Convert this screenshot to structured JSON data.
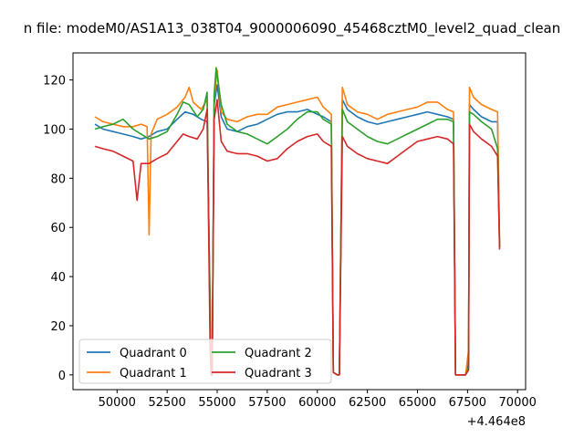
{
  "chart_data": {
    "type": "line",
    "title": "n file: modeM0/AS1A13_038T04_9000006090_45468cztM0_level2_quad_clean",
    "offset_label": "+4.464e8",
    "xlim": [
      47800,
      70400
    ],
    "ylim": [
      -6,
      131
    ],
    "xticks": [
      50000,
      52500,
      55000,
      57500,
      60000,
      62500,
      65000,
      67500,
      70000
    ],
    "xtick_labels": [
      "50000",
      "52500",
      "55000",
      "57500",
      "60000",
      "62500",
      "65000",
      "67500",
      "70000"
    ],
    "yticks": [
      0,
      20,
      40,
      60,
      80,
      100,
      120
    ],
    "ytick_labels": [
      "0",
      "20",
      "40",
      "60",
      "80",
      "100",
      "120"
    ],
    "grid": false,
    "legend": {
      "placement": "lower-left",
      "columns": 2
    },
    "series": [
      {
        "name": "Quadrant 0",
        "color": "#1f77b4",
        "points": [
          [
            48900,
            102
          ],
          [
            49300,
            100
          ],
          [
            49800,
            99
          ],
          [
            50300,
            98
          ],
          [
            50800,
            97
          ],
          [
            51200,
            96
          ],
          [
            51600,
            97
          ],
          [
            52000,
            99
          ],
          [
            52500,
            100
          ],
          [
            53000,
            104
          ],
          [
            53400,
            107
          ],
          [
            53800,
            106
          ],
          [
            54200,
            104
          ],
          [
            54500,
            103
          ],
          [
            54650,
            30
          ],
          [
            54700,
            0
          ],
          [
            54750,
            0
          ],
          [
            54850,
            110
          ],
          [
            55000,
            118
          ],
          [
            55200,
            105
          ],
          [
            55500,
            100
          ],
          [
            56000,
            99
          ],
          [
            56500,
            101
          ],
          [
            57000,
            102
          ],
          [
            57500,
            104
          ],
          [
            58000,
            106
          ],
          [
            58500,
            107
          ],
          [
            59000,
            107
          ],
          [
            59500,
            108
          ],
          [
            60000,
            106
          ],
          [
            60300,
            105
          ],
          [
            60700,
            103
          ],
          [
            60800,
            1
          ],
          [
            61000,
            0
          ],
          [
            61100,
            0
          ],
          [
            61250,
            112
          ],
          [
            61500,
            108
          ],
          [
            62000,
            105
          ],
          [
            62500,
            103
          ],
          [
            63000,
            102
          ],
          [
            63500,
            103
          ],
          [
            64000,
            104
          ],
          [
            64500,
            105
          ],
          [
            65000,
            106
          ],
          [
            65500,
            107
          ],
          [
            66000,
            106
          ],
          [
            66500,
            105
          ],
          [
            66800,
            104
          ],
          [
            66900,
            0
          ],
          [
            67400,
            0
          ],
          [
            67550,
            5
          ],
          [
            67600,
            110
          ],
          [
            67800,
            108
          ],
          [
            68200,
            105
          ],
          [
            68700,
            103
          ],
          [
            69000,
            103
          ],
          [
            69100,
            52
          ]
        ]
      },
      {
        "name": "Quadrant 1",
        "color": "#ff7f0e",
        "points": [
          [
            48900,
            105
          ],
          [
            49300,
            103
          ],
          [
            49800,
            102
          ],
          [
            50300,
            101
          ],
          [
            50800,
            101
          ],
          [
            51200,
            102
          ],
          [
            51500,
            101
          ],
          [
            51600,
            57
          ],
          [
            51700,
            98
          ],
          [
            52000,
            104
          ],
          [
            52500,
            106
          ],
          [
            53000,
            109
          ],
          [
            53400,
            113
          ],
          [
            53600,
            117
          ],
          [
            53800,
            111
          ],
          [
            54200,
            108
          ],
          [
            54500,
            112
          ],
          [
            54650,
            20
          ],
          [
            54700,
            0
          ],
          [
            54750,
            0
          ],
          [
            54850,
            112
          ],
          [
            55000,
            124
          ],
          [
            55200,
            107
          ],
          [
            55500,
            104
          ],
          [
            56000,
            103
          ],
          [
            56500,
            105
          ],
          [
            57000,
            106
          ],
          [
            57500,
            106
          ],
          [
            58000,
            109
          ],
          [
            58500,
            110
          ],
          [
            59000,
            111
          ],
          [
            59500,
            112
          ],
          [
            60000,
            113
          ],
          [
            60300,
            109
          ],
          [
            60700,
            106
          ],
          [
            60800,
            1
          ],
          [
            61000,
            0
          ],
          [
            61100,
            0
          ],
          [
            61250,
            117
          ],
          [
            61500,
            110
          ],
          [
            62000,
            107
          ],
          [
            62500,
            106
          ],
          [
            63000,
            104
          ],
          [
            63500,
            106
          ],
          [
            64000,
            107
          ],
          [
            64500,
            108
          ],
          [
            65000,
            109
          ],
          [
            65500,
            111
          ],
          [
            66000,
            111
          ],
          [
            66500,
            108
          ],
          [
            66800,
            107
          ],
          [
            66900,
            0
          ],
          [
            67400,
            0
          ],
          [
            67550,
            10
          ],
          [
            67600,
            117
          ],
          [
            67800,
            113
          ],
          [
            68200,
            110
          ],
          [
            68700,
            108
          ],
          [
            69000,
            107
          ],
          [
            69100,
            53
          ]
        ]
      },
      {
        "name": "Quadrant 2",
        "color": "#2ca02c",
        "points": [
          [
            48900,
            100
          ],
          [
            49300,
            101
          ],
          [
            49800,
            102
          ],
          [
            50300,
            104
          ],
          [
            50800,
            100
          ],
          [
            51200,
            98
          ],
          [
            51600,
            96
          ],
          [
            52000,
            97
          ],
          [
            52500,
            99
          ],
          [
            53000,
            106
          ],
          [
            53300,
            111
          ],
          [
            53600,
            110
          ],
          [
            54000,
            105
          ],
          [
            54300,
            108
          ],
          [
            54500,
            115
          ],
          [
            54650,
            18
          ],
          [
            54700,
            0
          ],
          [
            54750,
            0
          ],
          [
            54850,
            114
          ],
          [
            54950,
            125
          ],
          [
            55200,
            110
          ],
          [
            55500,
            102
          ],
          [
            56000,
            99
          ],
          [
            56500,
            98
          ],
          [
            57000,
            96
          ],
          [
            57500,
            94
          ],
          [
            58000,
            97
          ],
          [
            58500,
            100
          ],
          [
            59000,
            104
          ],
          [
            59500,
            107
          ],
          [
            60000,
            107
          ],
          [
            60300,
            104
          ],
          [
            60700,
            102
          ],
          [
            60800,
            1
          ],
          [
            61000,
            0
          ],
          [
            61100,
            0
          ],
          [
            61250,
            108
          ],
          [
            61500,
            103
          ],
          [
            62000,
            100
          ],
          [
            62500,
            97
          ],
          [
            63000,
            95
          ],
          [
            63500,
            94
          ],
          [
            64000,
            96
          ],
          [
            64500,
            98
          ],
          [
            65000,
            100
          ],
          [
            65500,
            102
          ],
          [
            66000,
            104
          ],
          [
            66500,
            104
          ],
          [
            66800,
            103
          ],
          [
            66900,
            0
          ],
          [
            67400,
            0
          ],
          [
            67550,
            3
          ],
          [
            67600,
            107
          ],
          [
            67800,
            106
          ],
          [
            68200,
            103
          ],
          [
            68700,
            100
          ],
          [
            69000,
            92
          ],
          [
            69100,
            52
          ]
        ]
      },
      {
        "name": "Quadrant 3",
        "color": "#d62728",
        "points": [
          [
            48900,
            93
          ],
          [
            49300,
            92
          ],
          [
            49800,
            91
          ],
          [
            50300,
            89
          ],
          [
            50800,
            87
          ],
          [
            51000,
            71
          ],
          [
            51200,
            86
          ],
          [
            51600,
            86
          ],
          [
            52000,
            88
          ],
          [
            52500,
            90
          ],
          [
            53000,
            95
          ],
          [
            53300,
            98
          ],
          [
            53600,
            97
          ],
          [
            54000,
            96
          ],
          [
            54300,
            100
          ],
          [
            54500,
            108
          ],
          [
            54650,
            10
          ],
          [
            54700,
            0
          ],
          [
            54750,
            0
          ],
          [
            54850,
            104
          ],
          [
            55000,
            112
          ],
          [
            55200,
            95
          ],
          [
            55500,
            91
          ],
          [
            56000,
            90
          ],
          [
            56500,
            90
          ],
          [
            57000,
            89
          ],
          [
            57500,
            87
          ],
          [
            58000,
            88
          ],
          [
            58500,
            92
          ],
          [
            59000,
            95
          ],
          [
            59500,
            97
          ],
          [
            60000,
            98
          ],
          [
            60300,
            95
          ],
          [
            60700,
            93
          ],
          [
            60800,
            1
          ],
          [
            61000,
            0
          ],
          [
            61100,
            0
          ],
          [
            61250,
            97
          ],
          [
            61500,
            93
          ],
          [
            62000,
            90
          ],
          [
            62500,
            88
          ],
          [
            63000,
            87
          ],
          [
            63500,
            86
          ],
          [
            64000,
            89
          ],
          [
            64500,
            92
          ],
          [
            65000,
            95
          ],
          [
            65500,
            96
          ],
          [
            66000,
            97
          ],
          [
            66500,
            96
          ],
          [
            66800,
            94
          ],
          [
            66900,
            0
          ],
          [
            67400,
            0
          ],
          [
            67550,
            2
          ],
          [
            67600,
            102
          ],
          [
            67800,
            99
          ],
          [
            68200,
            96
          ],
          [
            68700,
            93
          ],
          [
            69000,
            89
          ],
          [
            69100,
            51
          ]
        ]
      }
    ]
  }
}
